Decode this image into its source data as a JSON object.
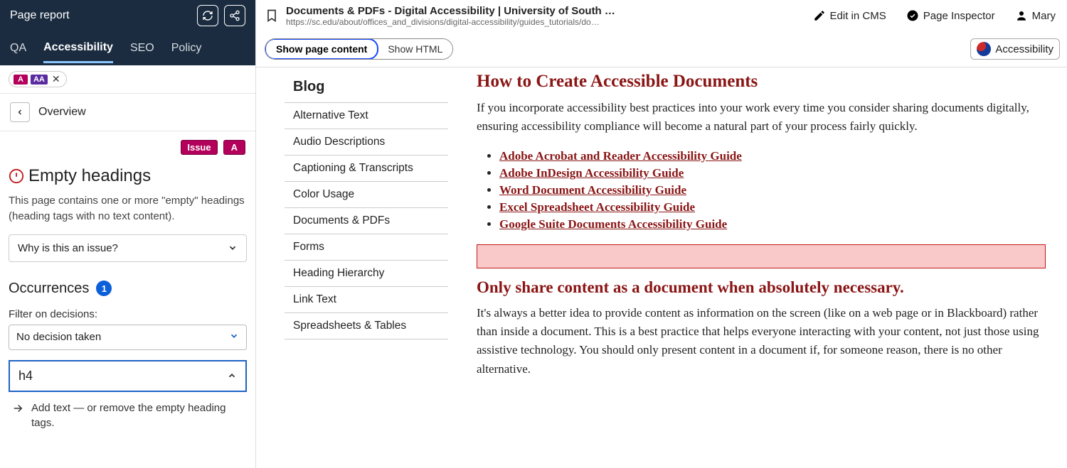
{
  "colors": {
    "panel_dark": "#1b2c40",
    "accent_pink": "#b3005a",
    "accent_purple": "#5a2ca0",
    "link_red": "#8a1515",
    "highlight_bg": "#f9c9c9",
    "highlight_border": "#c21818",
    "active_tab_underline": "#8bc6ff",
    "primary_blue": "#0b5fd9"
  },
  "left": {
    "title": "Page report",
    "tabs": [
      "QA",
      "Accessibility",
      "SEO",
      "Policy"
    ],
    "active_tab_index": 1,
    "level_badges": {
      "a": "A",
      "aa": "AA"
    },
    "overview_label": "Overview",
    "flags": {
      "issue": "Issue",
      "level": "A"
    },
    "issue": {
      "title": "Empty headings",
      "description": "This page contains one or more \"empty\" headings (heading tags with no text content).",
      "why_label": "Why is this an issue?"
    },
    "occurrences": {
      "heading": "Occurrences",
      "count": "1",
      "filter_label": "Filter on decisions:",
      "filter_value": "No decision taken",
      "item_label": "h4",
      "detail_text": "Add text — or remove the empty heading tags."
    }
  },
  "header": {
    "page_title": "Documents & PDFs - Digital Accessibility | University of South …",
    "page_url": "https://sc.edu/about/offices_and_divisions/digital-accessibility/guides_tutorials/do…",
    "edit_label": "Edit in CMS",
    "inspector_label": "Page Inspector",
    "user_name": "Mary"
  },
  "toolbar": {
    "seg_content": "Show page content",
    "seg_html": "Show HTML",
    "acc_label": "Accessibility"
  },
  "nav": {
    "header": "Blog",
    "items": [
      "Alternative Text",
      "Audio Descriptions",
      "Captioning & Transcripts",
      "Color Usage",
      "Documents & PDFs",
      "Forms",
      "Heading Hierarchy",
      "Link Text",
      "Spreadsheets & Tables"
    ]
  },
  "article": {
    "h1": "How to Create Accessible Documents",
    "p1": "If you incorporate accessibility best practices into your work every time you consider sharing documents digitally, ensuring accessibility compliance will become a natural part of your process fairly quickly.",
    "links": [
      "Adobe Acrobat and Reader Accessibility Guide",
      "Adobe InDesign Accessibility Guide",
      "Word Document Accessibility Guide",
      "Excel Spreadsheet Accessibility Guide",
      "Google Suite Documents Accessibility Guide"
    ],
    "h2": "Only share content as a document when absolutely necessary.",
    "p2": "It's always a better idea to provide content as information on the screen (like on a web page or in Blackboard) rather than inside a document. This is a best practice that helps everyone interacting with your content, not just those using assistive technology. You should only present content in a document if, for someone reason, there is no other alternative."
  }
}
